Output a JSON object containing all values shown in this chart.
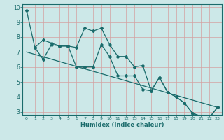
{
  "xlabel": "Humidex (Indice chaleur)",
  "bg_color": "#cce8e8",
  "grid_color": "#d4a0a0",
  "line_color": "#1a6b6b",
  "xlim": [
    -0.5,
    23.5
  ],
  "ylim": [
    2.8,
    10.2
  ],
  "xticks": [
    0,
    1,
    2,
    3,
    4,
    5,
    6,
    7,
    8,
    9,
    10,
    11,
    12,
    13,
    14,
    15,
    16,
    17,
    18,
    19,
    20,
    21,
    22,
    23
  ],
  "yticks": [
    3,
    4,
    5,
    6,
    7,
    8,
    9,
    10
  ],
  "line1_x": [
    0,
    1,
    2,
    3,
    4,
    5,
    6,
    7,
    8,
    9,
    10,
    11,
    12,
    13,
    14,
    15,
    16,
    17,
    18,
    19,
    20,
    21,
    22,
    23
  ],
  "line1_y": [
    9.8,
    7.3,
    7.8,
    7.6,
    7.4,
    7.4,
    7.3,
    8.6,
    8.4,
    8.6,
    7.5,
    6.7,
    6.7,
    6.0,
    6.1,
    4.4,
    5.3,
    4.3,
    4.0,
    3.6,
    2.9,
    2.7,
    2.6,
    3.3
  ],
  "line2_x": [
    1,
    2,
    3,
    4,
    5,
    6,
    7,
    8,
    9,
    10,
    11,
    12,
    13,
    14,
    15,
    16,
    17,
    18,
    19,
    20,
    21,
    22,
    23
  ],
  "line2_y": [
    7.3,
    6.5,
    7.5,
    7.4,
    7.4,
    6.0,
    6.0,
    6.0,
    7.5,
    6.7,
    5.4,
    5.4,
    5.4,
    4.5,
    4.4,
    5.3,
    4.3,
    4.0,
    3.6,
    2.9,
    2.7,
    2.6,
    3.3
  ],
  "line3_x": [
    0,
    23
  ],
  "line3_y": [
    7.0,
    3.3
  ]
}
